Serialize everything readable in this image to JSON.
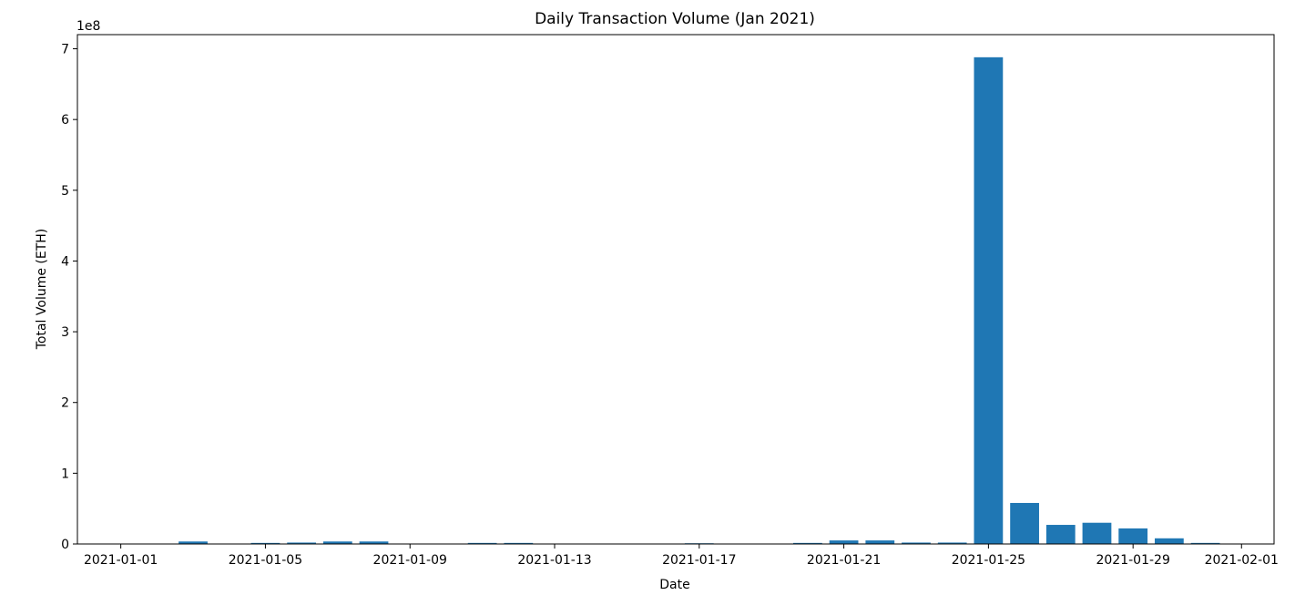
{
  "chart_data": {
    "type": "bar",
    "title": "Daily Transaction Volume (Jan 2021)",
    "xlabel": "Date",
    "ylabel": "Total Volume (ETH)",
    "y_offset_label": "1e8",
    "y_scale": 100000000,
    "ylim": [
      0,
      7.2
    ],
    "y_ticks": [
      0,
      1,
      2,
      3,
      4,
      5,
      6,
      7
    ],
    "x_range_days": [
      -1.2,
      31.9
    ],
    "x_ticks": [
      {
        "day": 0,
        "label": "2021-01-01"
      },
      {
        "day": 4,
        "label": "2021-01-05"
      },
      {
        "day": 8,
        "label": "2021-01-09"
      },
      {
        "day": 12,
        "label": "2021-01-13"
      },
      {
        "day": 16,
        "label": "2021-01-17"
      },
      {
        "day": 20,
        "label": "2021-01-21"
      },
      {
        "day": 24,
        "label": "2021-01-25"
      },
      {
        "day": 28,
        "label": "2021-01-29"
      },
      {
        "day": 31,
        "label": "2021-02-01"
      }
    ],
    "bar_width_days": 0.8,
    "bar_color": "#1f77b4",
    "series": [
      {
        "name": "Total Volume (ETH)",
        "unit_note": "values in units of 1e8 ETH",
        "points": [
          {
            "date": "2021-01-03",
            "day": 2,
            "value": 0.035
          },
          {
            "date": "2021-01-05",
            "day": 4,
            "value": 0.015
          },
          {
            "date": "2021-01-06",
            "day": 5,
            "value": 0.02
          },
          {
            "date": "2021-01-07",
            "day": 6,
            "value": 0.035
          },
          {
            "date": "2021-01-08",
            "day": 7,
            "value": 0.035
          },
          {
            "date": "2021-01-11",
            "day": 10,
            "value": 0.015
          },
          {
            "date": "2021-01-12",
            "day": 11,
            "value": 0.015
          },
          {
            "date": "2021-01-17",
            "day": 16,
            "value": 0.01
          },
          {
            "date": "2021-01-20",
            "day": 19,
            "value": 0.015
          },
          {
            "date": "2021-01-21",
            "day": 20,
            "value": 0.05
          },
          {
            "date": "2021-01-22",
            "day": 21,
            "value": 0.05
          },
          {
            "date": "2021-01-23",
            "day": 22,
            "value": 0.02
          },
          {
            "date": "2021-01-24",
            "day": 23,
            "value": 0.02
          },
          {
            "date": "2021-01-25",
            "day": 24,
            "value": 6.88
          },
          {
            "date": "2021-01-26",
            "day": 25,
            "value": 0.58
          },
          {
            "date": "2021-01-27",
            "day": 26,
            "value": 0.27
          },
          {
            "date": "2021-01-28",
            "day": 27,
            "value": 0.3
          },
          {
            "date": "2021-01-29",
            "day": 28,
            "value": 0.22
          },
          {
            "date": "2021-01-30",
            "day": 29,
            "value": 0.08
          },
          {
            "date": "2021-01-31",
            "day": 30,
            "value": 0.015
          }
        ]
      }
    ]
  }
}
